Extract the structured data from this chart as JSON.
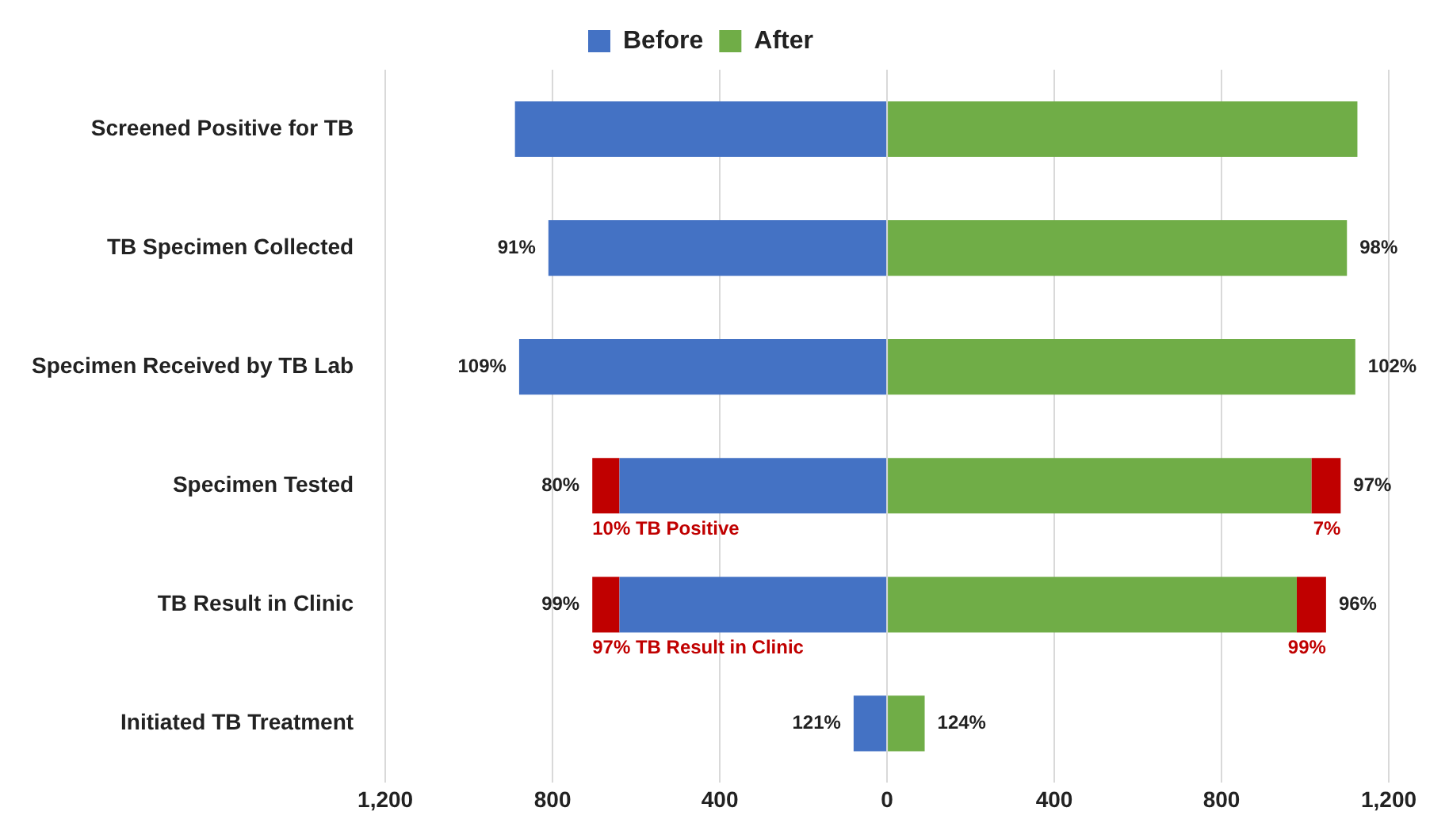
{
  "chart_data": {
    "type": "bar",
    "orientation": "horizontal",
    "stacked": true,
    "legend": "top",
    "grid": "x",
    "categories": [
      "Screened Positive for TB",
      "TB Specimen Collected",
      "Specimen Received by TB Lab",
      "Specimen Tested",
      "TB Result in Clinic",
      "Initiated TB Treatment"
    ],
    "xlim": [
      -1200,
      1200
    ],
    "xticks": [
      {
        "value": -1200,
        "label": "1,200"
      },
      {
        "value": -800,
        "label": "800"
      },
      {
        "value": -400,
        "label": "400"
      },
      0,
      400,
      800,
      {
        "value": 1200,
        "label": "1,200"
      }
    ],
    "series": [
      {
        "name": "Before",
        "color": "#4472c4",
        "values": [
          -890,
          -810,
          -880,
          -640,
          -640,
          -80
        ]
      },
      {
        "color": "#c00000",
        "values": [
          null,
          null,
          null,
          -65,
          -65,
          null
        ]
      },
      {
        "name": "After",
        "color": "#70ad47",
        "values": [
          1125,
          1100,
          1120,
          1015,
          980,
          90
        ]
      },
      {
        "color": "#c00000",
        "values": [
          null,
          null,
          null,
          70,
          70,
          null
        ]
      }
    ],
    "annotations": [
      {
        "text": "91%",
        "x": -810,
        "y": "TB Specimen Collected"
      },
      {
        "text": "109%",
        "x": -880,
        "y": "Specimen Received by TB Lab"
      },
      {
        "text": "80%",
        "x": -705,
        "y": "Specimen Tested"
      },
      {
        "text": "99%",
        "x": -705,
        "y": "TB Result in Clinic"
      },
      {
        "text": "121%",
        "x": -80,
        "y": "Initiated TB Treatment"
      },
      {
        "text": "98%",
        "x": 1100,
        "y": "TB Specimen Collected"
      },
      {
        "text": "102%",
        "x": 1120,
        "y": "Specimen Received by TB Lab"
      },
      {
        "text": "97%",
        "x": 1085,
        "y": "Specimen Tested"
      },
      {
        "text": "96%",
        "x": 1050,
        "y": "TB Result in Clinic"
      },
      {
        "text": "124%",
        "x": 90,
        "y": "Initiated TB Treatment"
      },
      {
        "text": "10% TB Positive",
        "x": -640,
        "y": "Specimen Tested"
      },
      {
        "text": "97% TB Result in Clinic",
        "x": -640,
        "y": "TB Result in Clinic"
      },
      {
        "text": "7%",
        "x": 1015,
        "y": "Specimen Tested"
      },
      {
        "text": "99%",
        "x": 980,
        "y": "TB Result in Clinic"
      }
    ]
  }
}
